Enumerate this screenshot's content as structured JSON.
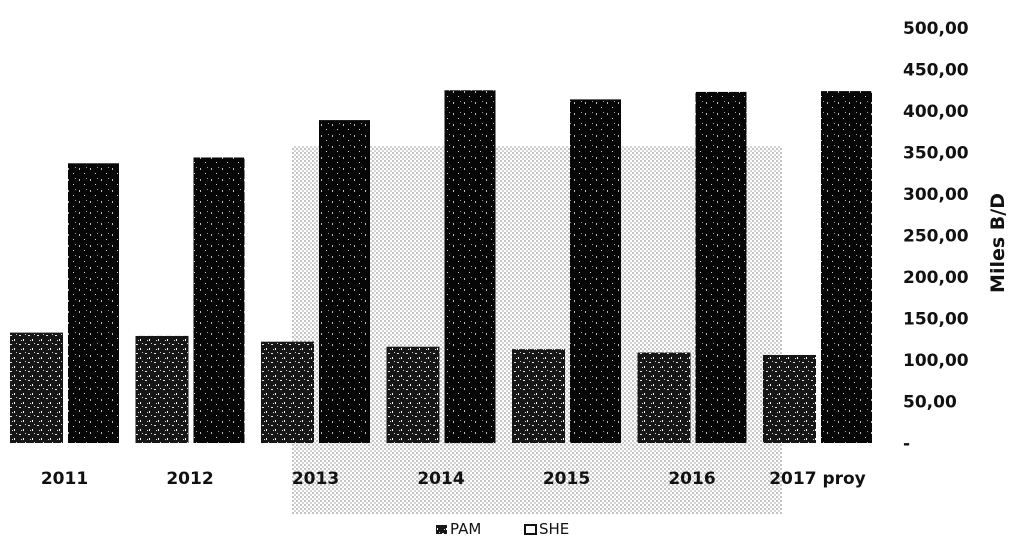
{
  "chart_data": {
    "type": "bar",
    "categories": [
      "2011",
      "2012",
      "2013",
      "2014",
      "2015",
      "2016",
      "2017 proy"
    ],
    "series": [
      {
        "name": "PAM",
        "values": [
          133,
          129,
          122,
          116,
          113,
          109,
          106
        ]
      },
      {
        "name": "SHE",
        "values": [
          337,
          344,
          389,
          425,
          414,
          423,
          424
        ]
      }
    ],
    "ylabel": "Miles B/D",
    "ylim": [
      0,
      500
    ],
    "yticks": [
      0,
      50,
      100,
      150,
      200,
      250,
      300,
      350,
      400,
      450,
      500
    ],
    "ytick_labels": [
      "-",
      "50,00",
      "100,00",
      "150,00",
      "200,00",
      "250,00",
      "300,00",
      "350,00",
      "400,00",
      "450,00",
      "500,00"
    ],
    "y_axis_position": "right",
    "legend": {
      "position": "bottom",
      "entries": [
        "PAM",
        "SHE"
      ]
    },
    "colors": {
      "PAM": "#1a1a1a",
      "SHE": "#050505",
      "background_pattern": "#c8c8c8"
    },
    "grid": false
  }
}
